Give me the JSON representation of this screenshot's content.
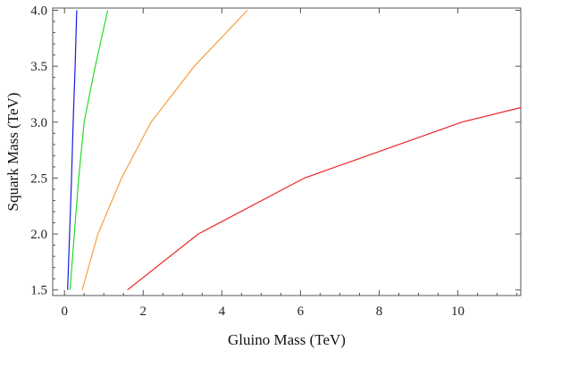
{
  "chart_data": {
    "type": "line",
    "title": "",
    "xlabel": "Gluino Mass (TeV)",
    "ylabel": "Squark Mass (TeV)",
    "xlim": [
      -0.3,
      11.6
    ],
    "ylim": [
      1.45,
      4.02
    ],
    "xticks": [
      0,
      2,
      4,
      6,
      8,
      10
    ],
    "xtick_labels": [
      "0",
      "2",
      "4",
      "6",
      "8",
      "10"
    ],
    "yticks": [
      1.5,
      2.0,
      2.5,
      3.0,
      3.5,
      4.0
    ],
    "ytick_labels": [
      "1.5",
      "2.0",
      "2.5",
      "3.0",
      "3.5",
      "4.0"
    ],
    "grid": false,
    "series": [
      {
        "name": "blue",
        "color": "#1a1adf",
        "points": [
          [
            0.08,
            1.5
          ],
          [
            0.13,
            2.0
          ],
          [
            0.18,
            2.5
          ],
          [
            0.22,
            3.0
          ],
          [
            0.27,
            3.5
          ],
          [
            0.31,
            4.0
          ]
        ]
      },
      {
        "name": "green",
        "color": "#22dd22",
        "points": [
          [
            0.14,
            1.5
          ],
          [
            0.25,
            2.0
          ],
          [
            0.36,
            2.5
          ],
          [
            0.5,
            3.0
          ],
          [
            0.78,
            3.5
          ],
          [
            1.1,
            4.0
          ]
        ]
      },
      {
        "name": "orange",
        "color": "#f5a040",
        "points": [
          [
            0.45,
            1.5
          ],
          [
            0.85,
            2.0
          ],
          [
            1.45,
            2.5
          ],
          [
            2.2,
            3.0
          ],
          [
            3.3,
            3.5
          ],
          [
            4.65,
            4.0
          ]
        ]
      },
      {
        "name": "red",
        "color": "#ee2222",
        "points": [
          [
            1.6,
            1.5
          ],
          [
            3.4,
            2.0
          ],
          [
            6.1,
            2.5
          ],
          [
            10.1,
            3.0
          ],
          [
            11.6,
            3.13
          ]
        ]
      }
    ]
  }
}
